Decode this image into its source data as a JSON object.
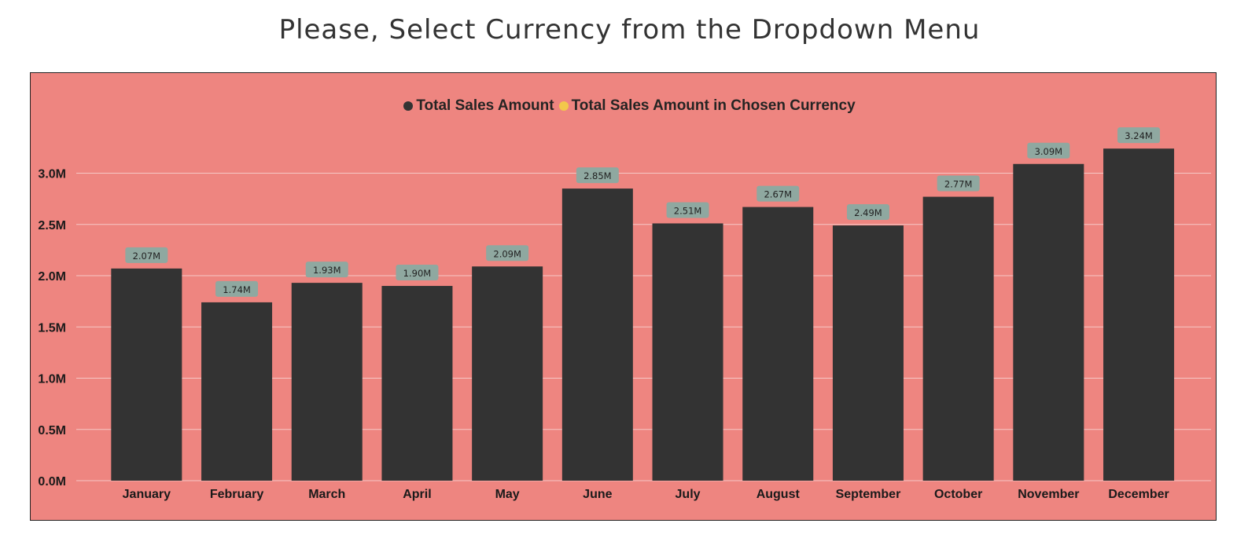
{
  "title": "Please, Select Currency from the Dropdown Menu",
  "legend": [
    {
      "label": "Total Sales Amount",
      "color": "#333333"
    },
    {
      "label": "Total Sales Amount in Chosen Currency",
      "color": "#f2c84b"
    }
  ],
  "colors": {
    "panel_background": "#ee8580",
    "bar": "#333333",
    "data_label_background": "#8fa8a0",
    "gridline": "#f5c8c6"
  },
  "chart_data": {
    "type": "bar",
    "categories": [
      "January",
      "February",
      "March",
      "April",
      "May",
      "June",
      "July",
      "August",
      "September",
      "October",
      "November",
      "December"
    ],
    "series": [
      {
        "name": "Total Sales Amount",
        "values": [
          2.07,
          1.74,
          1.93,
          1.9,
          2.09,
          2.85,
          2.51,
          2.67,
          2.49,
          2.77,
          3.09,
          3.24
        ]
      }
    ],
    "data_labels": [
      "2.07M",
      "1.74M",
      "1.93M",
      "1.90M",
      "2.09M",
      "2.85M",
      "2.51M",
      "2.67M",
      "2.49M",
      "2.77M",
      "3.09M",
      "3.24M"
    ],
    "unit": "M",
    "yticks": [
      "0.0M",
      "0.5M",
      "1.0M",
      "1.5M",
      "2.0M",
      "2.5M",
      "3.0M"
    ],
    "ytick_values": [
      0,
      0.5,
      1.0,
      1.5,
      2.0,
      2.5,
      3.0
    ],
    "ylim": [
      0,
      3.5
    ],
    "grid": true,
    "legend_position": "top-center"
  }
}
